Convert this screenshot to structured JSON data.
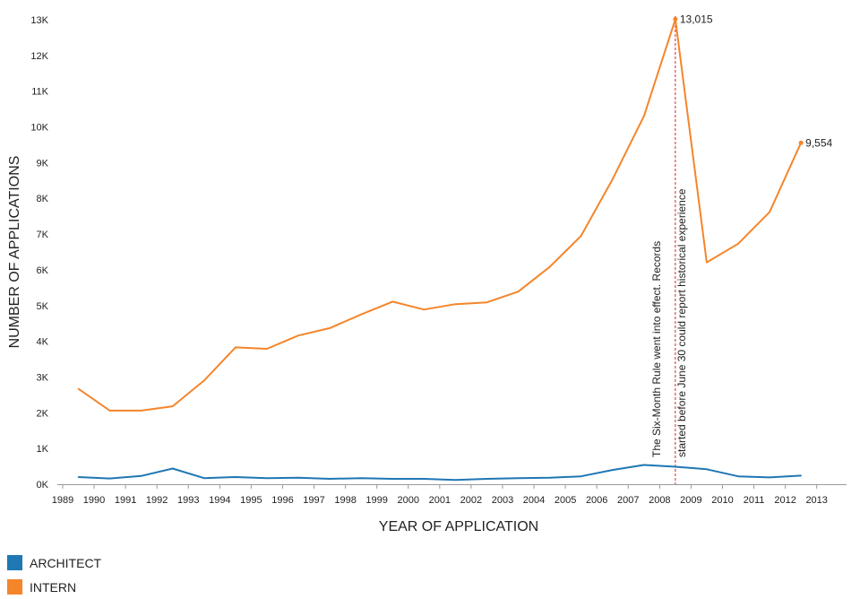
{
  "chart_data": {
    "type": "line",
    "xlabel": "YEAR OF APPLICATION",
    "ylabel": "NUMBER OF APPLICATIONS",
    "x_ticks": [
      "1989",
      "1990",
      "1991",
      "1992",
      "1993",
      "1994",
      "1995",
      "1996",
      "1997",
      "1998",
      "1999",
      "2000",
      "2001",
      "2002",
      "2003",
      "2004",
      "2005",
      "2006",
      "2007",
      "2008",
      "2009",
      "2010",
      "2011",
      "2012",
      "2013"
    ],
    "y_ticks": [
      "0K",
      "1K",
      "2K",
      "3K",
      "4K",
      "5K",
      "6K",
      "7K",
      "8K",
      "9K",
      "10K",
      "11K",
      "12K",
      "13K"
    ],
    "ylim": [
      0,
      13000
    ],
    "grid": false,
    "x": [
      1989.5,
      1990.5,
      1991.5,
      1992.5,
      1993.5,
      1994.5,
      1995.5,
      1996.5,
      1997.5,
      1998.5,
      1999.5,
      2000.5,
      2001.5,
      2002.5,
      2003.5,
      2004.5,
      2005.5,
      2006.5,
      2007.5,
      2008.5,
      2009.5,
      2010.5,
      2011.5,
      2012.5
    ],
    "series": [
      {
        "name": "ARCHITECT",
        "color": "#1f77b4",
        "values": [
          200,
          160,
          230,
          440,
          170,
          200,
          170,
          180,
          150,
          170,
          150,
          150,
          120,
          150,
          170,
          180,
          220,
          400,
          540,
          490,
          420,
          220,
          190,
          240
        ]
      },
      {
        "name": "INTERN",
        "color": "#f5852a",
        "values": [
          2670,
          2060,
          2060,
          2180,
          2900,
          3830,
          3790,
          4160,
          4370,
          4750,
          5110,
          4890,
          5040,
          5090,
          5390,
          6080,
          6950,
          8530,
          10300,
          13015,
          6210,
          6730,
          7620,
          9554
        ]
      }
    ],
    "end_labels": [
      {
        "series": "INTERN",
        "x": 2008.5,
        "y": 13015,
        "text": "13,015"
      },
      {
        "series": "INTERN",
        "x": 2012.5,
        "y": 9554,
        "text": "9,554"
      }
    ],
    "annotation": {
      "x": 2008.5,
      "line_color": "#d6222e",
      "lines": [
        "The Six-Month Rule went into effect. Records",
        "started before June 30 could report historical experience"
      ]
    },
    "legend": "bottom-left"
  }
}
